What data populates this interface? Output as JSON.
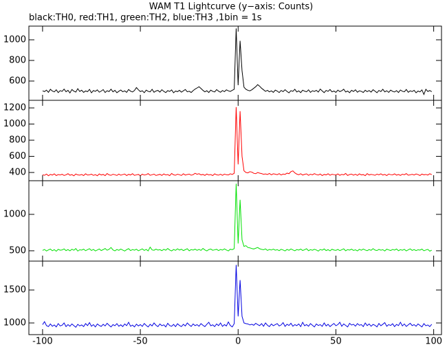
{
  "chart_data": {
    "type": "line",
    "title": "WAM T1 Lightcurve (y−axis: Counts)",
    "subtitle": "black:TH0, red:TH1, green:TH2, blue:TH3 ,1bin = 1s",
    "xlim": [
      -107,
      104
    ],
    "xticks": [
      -100,
      -50,
      0,
      50,
      100
    ],
    "x": [
      -100,
      -99,
      -98,
      -97,
      -96,
      -95,
      -94,
      -93,
      -92,
      -91,
      -90,
      -89,
      -88,
      -87,
      -86,
      -85,
      -84,
      -83,
      -82,
      -81,
      -80,
      -79,
      -78,
      -77,
      -76,
      -75,
      -74,
      -73,
      -72,
      -71,
      -70,
      -69,
      -68,
      -67,
      -66,
      -65,
      -64,
      -63,
      -62,
      -61,
      -60,
      -59,
      -58,
      -57,
      -56,
      -55,
      -54,
      -53,
      -52,
      -51,
      -50,
      -49,
      -48,
      -47,
      -46,
      -45,
      -44,
      -43,
      -42,
      -41,
      -40,
      -39,
      -38,
      -37,
      -36,
      -35,
      -34,
      -33,
      -32,
      -31,
      -30,
      -29,
      -28,
      -27,
      -26,
      -25,
      -24,
      -23,
      -22,
      -21,
      -20,
      -19,
      -18,
      -17,
      -16,
      -15,
      -14,
      -13,
      -12,
      -11,
      -10,
      -9,
      -8,
      -7,
      -6,
      -5,
      -4,
      -3,
      -2,
      -1,
      0,
      1,
      2,
      3,
      4,
      5,
      6,
      7,
      8,
      9,
      10,
      11,
      12,
      13,
      14,
      15,
      16,
      17,
      18,
      19,
      20,
      21,
      22,
      23,
      24,
      25,
      26,
      27,
      28,
      29,
      30,
      31,
      32,
      33,
      34,
      35,
      36,
      37,
      38,
      39,
      40,
      41,
      42,
      43,
      44,
      45,
      46,
      47,
      48,
      49,
      50,
      51,
      52,
      53,
      54,
      55,
      56,
      57,
      58,
      59,
      60,
      61,
      62,
      63,
      64,
      65,
      66,
      67,
      68,
      69,
      70,
      71,
      72,
      73,
      74,
      75,
      76,
      77,
      78,
      79,
      80,
      81,
      82,
      83,
      84,
      85,
      86,
      87,
      88,
      89,
      90,
      91,
      92,
      93,
      94,
      95,
      96,
      97,
      98,
      99
    ],
    "series": [
      {
        "color": "#000000",
        "ylim": [
          413,
          1133
        ],
        "yticks": [
          600,
          800,
          1000
        ],
        "values": [
          505,
          498,
          512,
          490,
          520,
          503,
          495,
          515,
          488,
          507,
          500,
          522,
          496,
          510,
          485,
          518,
          502,
          493,
          526,
          499,
          511,
          490,
          504,
          497,
          519,
          486,
          508,
          500,
          514,
          492,
          503,
          517,
          489,
          506,
          498,
          521,
          495,
          510,
          487,
          501,
          513,
          496,
          505,
          490,
          518,
          502,
          494,
          509,
          537,
          515,
          498,
          506,
          487,
          512,
          500,
          495,
          520,
          491,
          504,
          509,
          493,
          516,
          500,
          488,
          507,
          499,
          514,
          486,
          503,
          497,
          510,
          492,
          505,
          518,
          496,
          501,
          489,
          507,
          522,
          533,
          545,
          528,
          510,
          495,
          506,
          489,
          512,
          500,
          494,
          517,
          502,
          491,
          508,
          497,
          515,
          505,
          499,
          510,
          520,
          1110,
          560,
          990,
          700,
          540,
          520,
          510,
          505,
          515,
          530,
          545,
          565,
          550,
          530,
          515,
          500,
          510,
          495,
          505,
          490,
          512,
          503,
          488,
          509,
          497,
          516,
          499,
          486,
          507,
          500,
          520,
          494,
          505,
          488,
          511,
          502,
          496,
          515,
          490,
          506,
          499,
          510,
          493,
          522,
          504,
          488,
          509,
          500,
          518,
          495,
          503,
          490,
          512,
          498,
          506,
          521,
          494,
          503,
          487,
          510,
          499,
          515,
          492,
          505,
          500,
          489,
          511,
          497,
          508,
          493,
          516,
          502,
          487,
          509,
          498,
          520,
          495,
          506,
          490,
          512,
          500,
          494,
          507,
          489,
          513,
          501,
          496,
          518,
          491,
          505,
          498,
          510,
          486,
          503,
          495,
          514,
          470,
          520,
          499,
          508,
          497
        ]
      },
      {
        "color": "#ff0000",
        "ylim": [
          298,
          1294
        ],
        "yticks": [
          400,
          600,
          800,
          1000,
          1200
        ],
        "values": [
          372,
          365,
          380,
          360,
          376,
          368,
          383,
          362,
          374,
          369,
          378,
          363,
          371,
          385,
          366,
          374,
          359,
          381,
          370,
          367,
          375,
          362,
          384,
          368,
          371,
          379,
          364,
          373,
          360,
          382,
          369,
          376,
          361,
          387,
          370,
          365,
          378,
          372,
          363,
          380,
          366,
          374,
          381,
          362,
          377,
          369,
          385,
          364,
          371,
          376,
          360,
          379,
          368,
          373,
          386,
          365,
          372,
          380,
          363,
          370,
          377,
          364,
          382,
          369,
          374,
          361,
          388,
          371,
          366,
          379,
          372,
          363,
          384,
          368,
          375,
          380,
          366,
          373,
          390,
          378,
          385,
          370,
          376,
          364,
          381,
          369,
          374,
          362,
          383,
          371,
          367,
          378,
          365,
          380,
          372,
          369,
          384,
          376,
          390,
          1210,
          500,
          1160,
          600,
          420,
          400,
          395,
          410,
          405,
          390,
          385,
          400,
          392,
          386,
          378,
          382,
          375,
          388,
          371,
          384,
          379,
          373,
          386,
          369,
          381,
          376,
          392,
          385,
          410,
          420,
          395,
          380,
          372,
          385,
          368,
          377,
          383,
          365,
          379,
          371,
          386,
          374,
          368,
          381,
          362,
          376,
          370,
          384,
          366,
          378,
          373,
          369,
          382,
          365,
          377,
          371,
          388,
          363,
          375,
          380,
          367,
          378,
          364,
          383,
          370,
          374,
          361,
          386,
          369,
          377,
          372,
          365,
          380,
          371,
          384,
          368,
          376,
          362,
          381,
          373,
          370,
          383,
          367,
          375,
          364,
          379,
          372,
          386,
          366,
          371,
          378,
          369,
          382,
          374,
          363,
          380,
          371,
          376,
          368,
          385,
          373
        ]
      },
      {
        "color": "#00e000",
        "ylim": [
          358,
          1462
        ],
        "yticks": [
          500,
          1000
        ],
        "values": [
          505,
          518,
          497,
          512,
          523,
          500,
          515,
          494,
          520,
          508,
          511,
          526,
          502,
          517,
          499,
          521,
          507,
          530,
          496,
          514,
          509,
          522,
          501,
          515,
          528,
          504,
          519,
          498,
          511,
          525,
          503,
          516,
          531,
          507,
          520,
          545,
          512,
          499,
          518,
          506,
          524,
          510,
          497,
          515,
          529,
          503,
          517,
          508,
          521,
          500,
          513,
          526,
          505,
          519,
          498,
          550,
          512,
          507,
          523,
          509,
          516,
          502,
          520,
          508,
          531,
          511,
          498,
          518,
          506,
          527,
          510,
          521,
          503,
          515,
          528,
          500,
          517,
          509,
          522,
          506,
          519,
          505,
          532,
          512,
          498,
          516,
          524,
          507,
          513,
          520,
          503,
          518,
          509,
          526,
          511,
          498,
          521,
          515,
          530,
          1420,
          600,
          1200,
          650,
          560,
          570,
          545,
          540,
          530,
          525,
          535,
          545,
          528,
          520,
          514,
          526,
          505,
          518,
          510,
          523,
          508,
          515,
          502,
          520,
          511,
          498,
          519,
          506,
          525,
          512,
          500,
          517,
          509,
          523,
          504,
          514,
          528,
          501,
          516,
          507,
          520,
          511,
          496,
          518,
          508,
          525,
          503,
          515,
          499,
          521,
          510,
          506,
          519,
          502,
          514,
          527,
          500,
          516,
          509,
          522,
          505,
          513,
          498,
          520,
          507,
          524,
          511,
          501,
          517,
          506,
          529,
          510,
          503,
          519,
          508,
          515,
          497,
          522,
          512,
          504,
          518,
          509,
          524,
          501,
          516,
          507,
          520,
          498,
          513,
          526,
          505,
          517,
          502,
          514,
          509,
          523,
          500,
          511,
          519,
          495,
          508
        ]
      },
      {
        "color": "#0000e0",
        "ylim": [
          823,
          1938
        ],
        "yticks": [
          1000,
          1500
        ],
        "values": [
          975,
          1020,
          960,
          945,
          985,
          950,
          970,
          940,
          990,
          955,
          965,
          1000,
          945,
          975,
          950,
          985,
          960,
          935,
          980,
          955,
          970,
          945,
          990,
          960,
          1005,
          950,
          975,
          940,
          985,
          962,
          948,
          980,
          955,
          995,
          965,
          940,
          975,
          958,
          990,
          950,
          972,
          945,
          985,
          960,
          1010,
          950,
          968,
          940,
          982,
          955,
          975,
          948,
          992,
          962,
          940,
          980,
          955,
          1000,
          965,
          945,
          985,
          958,
          972,
          940,
          995,
          960,
          950,
          978,
          945,
          988,
          962,
          945,
          980,
          955,
          1000,
          970,
          948,
          985,
          960,
          975,
          950,
          990,
          965,
          945,
          980,
          1010,
          958,
          972,
          945,
          985,
          960,
          1000,
          948,
          975,
          955,
          1015,
          962,
          940,
          990,
          1880,
          1100,
          1650,
          1100,
          1000,
          990,
          985,
          970,
          980,
          965,
          995,
          975,
          960,
          990,
          950,
          1000,
          965,
          945,
          985,
          958,
          975,
          990,
          955,
          970,
          1005,
          948,
          980,
          962,
          995,
          950,
          975,
          960,
          985,
          945,
          1010,
          958,
          975,
          950,
          990,
          965,
          940,
          985,
          962,
          975,
          948,
          1000,
          955,
          980,
          945,
          970,
          992,
          958,
          975,
          1010,
          950,
          985,
          962,
          940,
          995,
          968,
          980,
          952,
          990,
          965,
          975,
          945,
          1000,
          960,
          985,
          950,
          978,
          965,
          940,
          992,
          958,
          980,
          1005,
          950,
          975,
          962,
          988,
          945,
          978,
          960,
          1010,
          955,
          985,
          948,
          972,
          995,
          960,
          975,
          950,
          985,
          962,
          940,
          990,
          958,
          970,
          945,
          980
        ]
      }
    ]
  }
}
